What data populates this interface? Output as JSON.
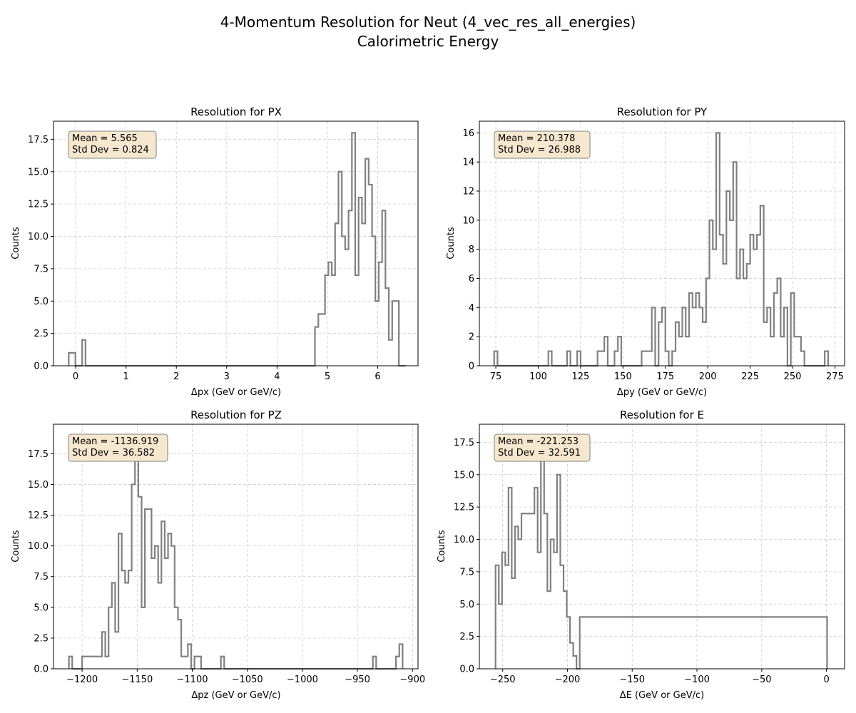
{
  "figure": {
    "title_line1": "4-Momentum Resolution for Neut (4_vec_res_all_energies)",
    "title_line2": "Calorimetric Energy"
  },
  "style": {
    "hist_color": "#808080",
    "grid_color": "#cccccc",
    "stats_box_fill": "#f6e8cf",
    "stats_box_edge": "#7f7f7f"
  },
  "chart_data": [
    {
      "type": "histogram",
      "title": "Resolution for PX",
      "xlabel": "Δpx (GeV or GeV/c)",
      "ylabel": "Counts",
      "xlim": [
        -0.44,
        6.8
      ],
      "ylim": [
        0,
        18.9
      ],
      "xticks": [
        0,
        1,
        2,
        3,
        4,
        5,
        6
      ],
      "yticks": [
        0.0,
        2.5,
        5.0,
        7.5,
        10.0,
        12.5,
        15.0,
        17.5
      ],
      "ytick_decimals": 1,
      "grid": true,
      "stats": {
        "mean": "Mean = 5.565",
        "std": "Std Dev = 0.824"
      },
      "bin_edges": [
        -0.138,
        -0.071,
        -0.005,
        0.062,
        0.129,
        0.196,
        0.262,
        0.329,
        4.753,
        4.82,
        4.887,
        4.953,
        5.02,
        5.087,
        5.153,
        5.22,
        5.287,
        5.353,
        5.42,
        5.487,
        5.553,
        5.62,
        5.687,
        5.753,
        5.82,
        5.887,
        5.953,
        6.02,
        6.087,
        6.153,
        6.22,
        6.287,
        6.353,
        6.42,
        6.487,
        6.553
      ],
      "counts": [
        1,
        1,
        0,
        0,
        2,
        0,
        0,
        0,
        3,
        4,
        4,
        7,
        8,
        7,
        11,
        15,
        10,
        9,
        12,
        18,
        7,
        13,
        11,
        16,
        14,
        10,
        5,
        8,
        12,
        6,
        2,
        5,
        5,
        0,
        0
      ]
    },
    {
      "type": "histogram",
      "title": "Resolution for PY",
      "xlabel": "Δpy (GeV or GeV/c)",
      "ylabel": "Counts",
      "xlim": [
        65.3,
        280.7
      ],
      "ylim": [
        0,
        16.8
      ],
      "xticks": [
        75,
        100,
        125,
        150,
        175,
        200,
        225,
        250,
        275
      ],
      "yticks": [
        0,
        2,
        4,
        6,
        8,
        10,
        12,
        14,
        16
      ],
      "ytick_decimals": 0,
      "grid": true,
      "stats": {
        "mean": "Mean = 210.378",
        "std": "Std Dev = 26.988"
      },
      "bin_edges": [
        74,
        76,
        78,
        106,
        108,
        110,
        117,
        119,
        121,
        123,
        125,
        135,
        137,
        139,
        141,
        145,
        147,
        149,
        151,
        161,
        163,
        165,
        167,
        169,
        171,
        173,
        175,
        177,
        179,
        181,
        183,
        185,
        187,
        189,
        191,
        193,
        195,
        197,
        199,
        201,
        203,
        205,
        207,
        209,
        211,
        213,
        215,
        217,
        219,
        221,
        223,
        225,
        227,
        229,
        231,
        233,
        235,
        237,
        239,
        241,
        243,
        245,
        247,
        249,
        251,
        253,
        255,
        257,
        259,
        269,
        271
      ],
      "counts": [
        1,
        0,
        0,
        1,
        0,
        0,
        1,
        0,
        0,
        1,
        0,
        1,
        1,
        2,
        0,
        1,
        2,
        0,
        0,
        1,
        1,
        1,
        4,
        0,
        3,
        4,
        1,
        0,
        1,
        3,
        2,
        4,
        2,
        5,
        4,
        5,
        4,
        3,
        6,
        10,
        8,
        16,
        9,
        7,
        12,
        10,
        14,
        6,
        8,
        6,
        7,
        9,
        8,
        9,
        11,
        3,
        4,
        2,
        5,
        6,
        2,
        4,
        0,
        5,
        2,
        2,
        1,
        0,
        0,
        1
      ]
    },
    {
      "type": "histogram",
      "title": "Resolution for PZ",
      "xlabel": "Δpz (GeV or GeV/c)",
      "ylabel": "Counts",
      "xlim": [
        -1226,
        -895
      ],
      "ylim": [
        0,
        19.9
      ],
      "xticks": [
        -1200,
        -1150,
        -1100,
        -1050,
        -1000,
        -950,
        -900
      ],
      "xtick_labels": [
        "−1200",
        "−1150",
        "−1100",
        "−1050",
        "−1000",
        "−950",
        "−900"
      ],
      "yticks": [
        0.0,
        2.5,
        5.0,
        7.5,
        10.0,
        12.5,
        15.0,
        17.5
      ],
      "ytick_decimals": 1,
      "grid": true,
      "stats": {
        "mean": "Mean = -1136.919",
        "std": "Std Dev = 36.582"
      },
      "bin_edges": [
        -1212,
        -1209,
        -1206,
        -1203,
        -1200,
        -1182,
        -1179,
        -1176,
        -1173,
        -1170,
        -1167,
        -1164,
        -1161,
        -1158,
        -1155,
        -1152,
        -1149,
        -1146,
        -1143,
        -1140,
        -1137,
        -1134,
        -1131,
        -1128,
        -1125,
        -1122,
        -1119,
        -1116,
        -1113,
        -1110,
        -1104,
        -1101,
        -1098,
        -1095,
        -1092,
        -1089,
        -1086,
        -1083,
        -1080,
        -1074,
        -1071,
        -936,
        -933,
        -930,
        -915,
        -912,
        -909
      ],
      "counts": [
        1,
        0,
        0,
        0,
        1,
        3,
        1,
        5,
        7,
        3,
        11,
        8,
        7,
        8,
        15,
        19,
        14,
        5,
        13,
        13,
        9,
        10,
        7,
        12,
        9,
        11,
        10,
        5,
        4,
        1,
        2,
        0,
        1,
        1,
        0,
        0,
        0,
        0,
        0,
        1,
        0,
        1,
        0,
        0,
        1,
        2
      ]
    },
    {
      "type": "histogram",
      "title": "Resolution for E",
      "xlabel": "ΔE (GeV or GeV/c)",
      "ylabel": "Counts",
      "xlim": [
        -268,
        14
      ],
      "ylim": [
        0,
        18.9
      ],
      "xticks": [
        -250,
        -200,
        -150,
        -100,
        -50,
        0
      ],
      "xtick_labels": [
        "−250",
        "−200",
        "−150",
        "−100",
        "−50",
        "0"
      ],
      "yticks": [
        0.0,
        2.5,
        5.0,
        7.5,
        10.0,
        12.5,
        15.0,
        17.5
      ],
      "ytick_decimals": 1,
      "grid": true,
      "stats": {
        "mean": "Mean = -221.253",
        "std": "Std Dev = 32.591"
      },
      "bin_edges": [
        -255.5,
        -253.0,
        -250.5,
        -248.0,
        -245.5,
        -243.0,
        -240.5,
        -238.0,
        -235.5,
        -233.0,
        -230.5,
        -228.0,
        -225.5,
        -223.0,
        -220.5,
        -218.0,
        -215.5,
        -213.0,
        -210.5,
        -208.0,
        -205.5,
        -203.0,
        -200.5,
        -198.0,
        -195.5,
        -193.0,
        -190.5,
        -2.0,
        0.5
      ],
      "counts": [
        8,
        5,
        9,
        8,
        14,
        7,
        11,
        10,
        12,
        12,
        12,
        12,
        14,
        9,
        18,
        12,
        6,
        10,
        9,
        15,
        8,
        6,
        4,
        2,
        1,
        0,
        4,
        4
      ]
    }
  ]
}
